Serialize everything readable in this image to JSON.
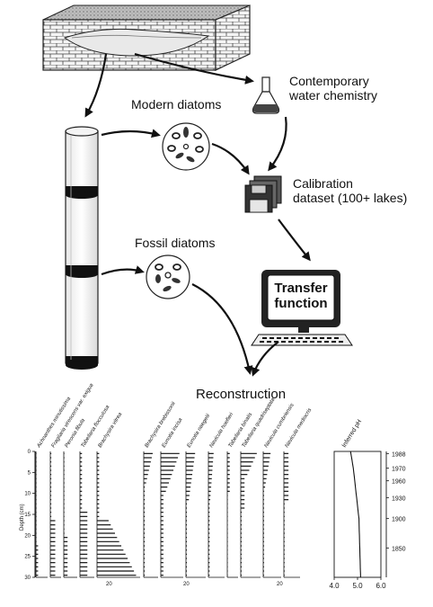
{
  "labels": {
    "contemporary_1": "Contemporary",
    "contemporary_2": "water chemistry",
    "modern_diatoms": "Modern diatoms",
    "calibration_1": "Calibration",
    "calibration_2": "dataset (100+ lakes)",
    "fossil_diatoms": "Fossil diatoms",
    "transfer_1": "Transfer",
    "transfer_2": "function",
    "reconstruction": "Reconstruction"
  },
  "chart_data": {
    "type": "bar",
    "ylabel": "Depth (cm)",
    "depth_ticks": [
      "0",
      "5",
      "10",
      "15",
      "20",
      "25",
      "30"
    ],
    "year_ticks": [
      "1988",
      "1970",
      "1960",
      "1930",
      "1900",
      "1850"
    ],
    "ph_label": "Inferred pH",
    "ph_ticks": [
      "4.0",
      "5.0",
      "6.0"
    ],
    "percent_tick": "20",
    "taxa": [
      "Achnanthes minutissima",
      "Fragilaria virescens var. exigua",
      "Peronia fibula",
      "Tabellaria flocculosa",
      "Brachysira vitrea",
      "Brachysira brebissonii",
      "Eunotia incisa",
      "Eunotia naegelii",
      "Navicula hoefleri",
      "Tabellaria binalis",
      "Tabellaria quadriseptata",
      "Navicula cumbriensis",
      "Navicula mediocris"
    ]
  }
}
